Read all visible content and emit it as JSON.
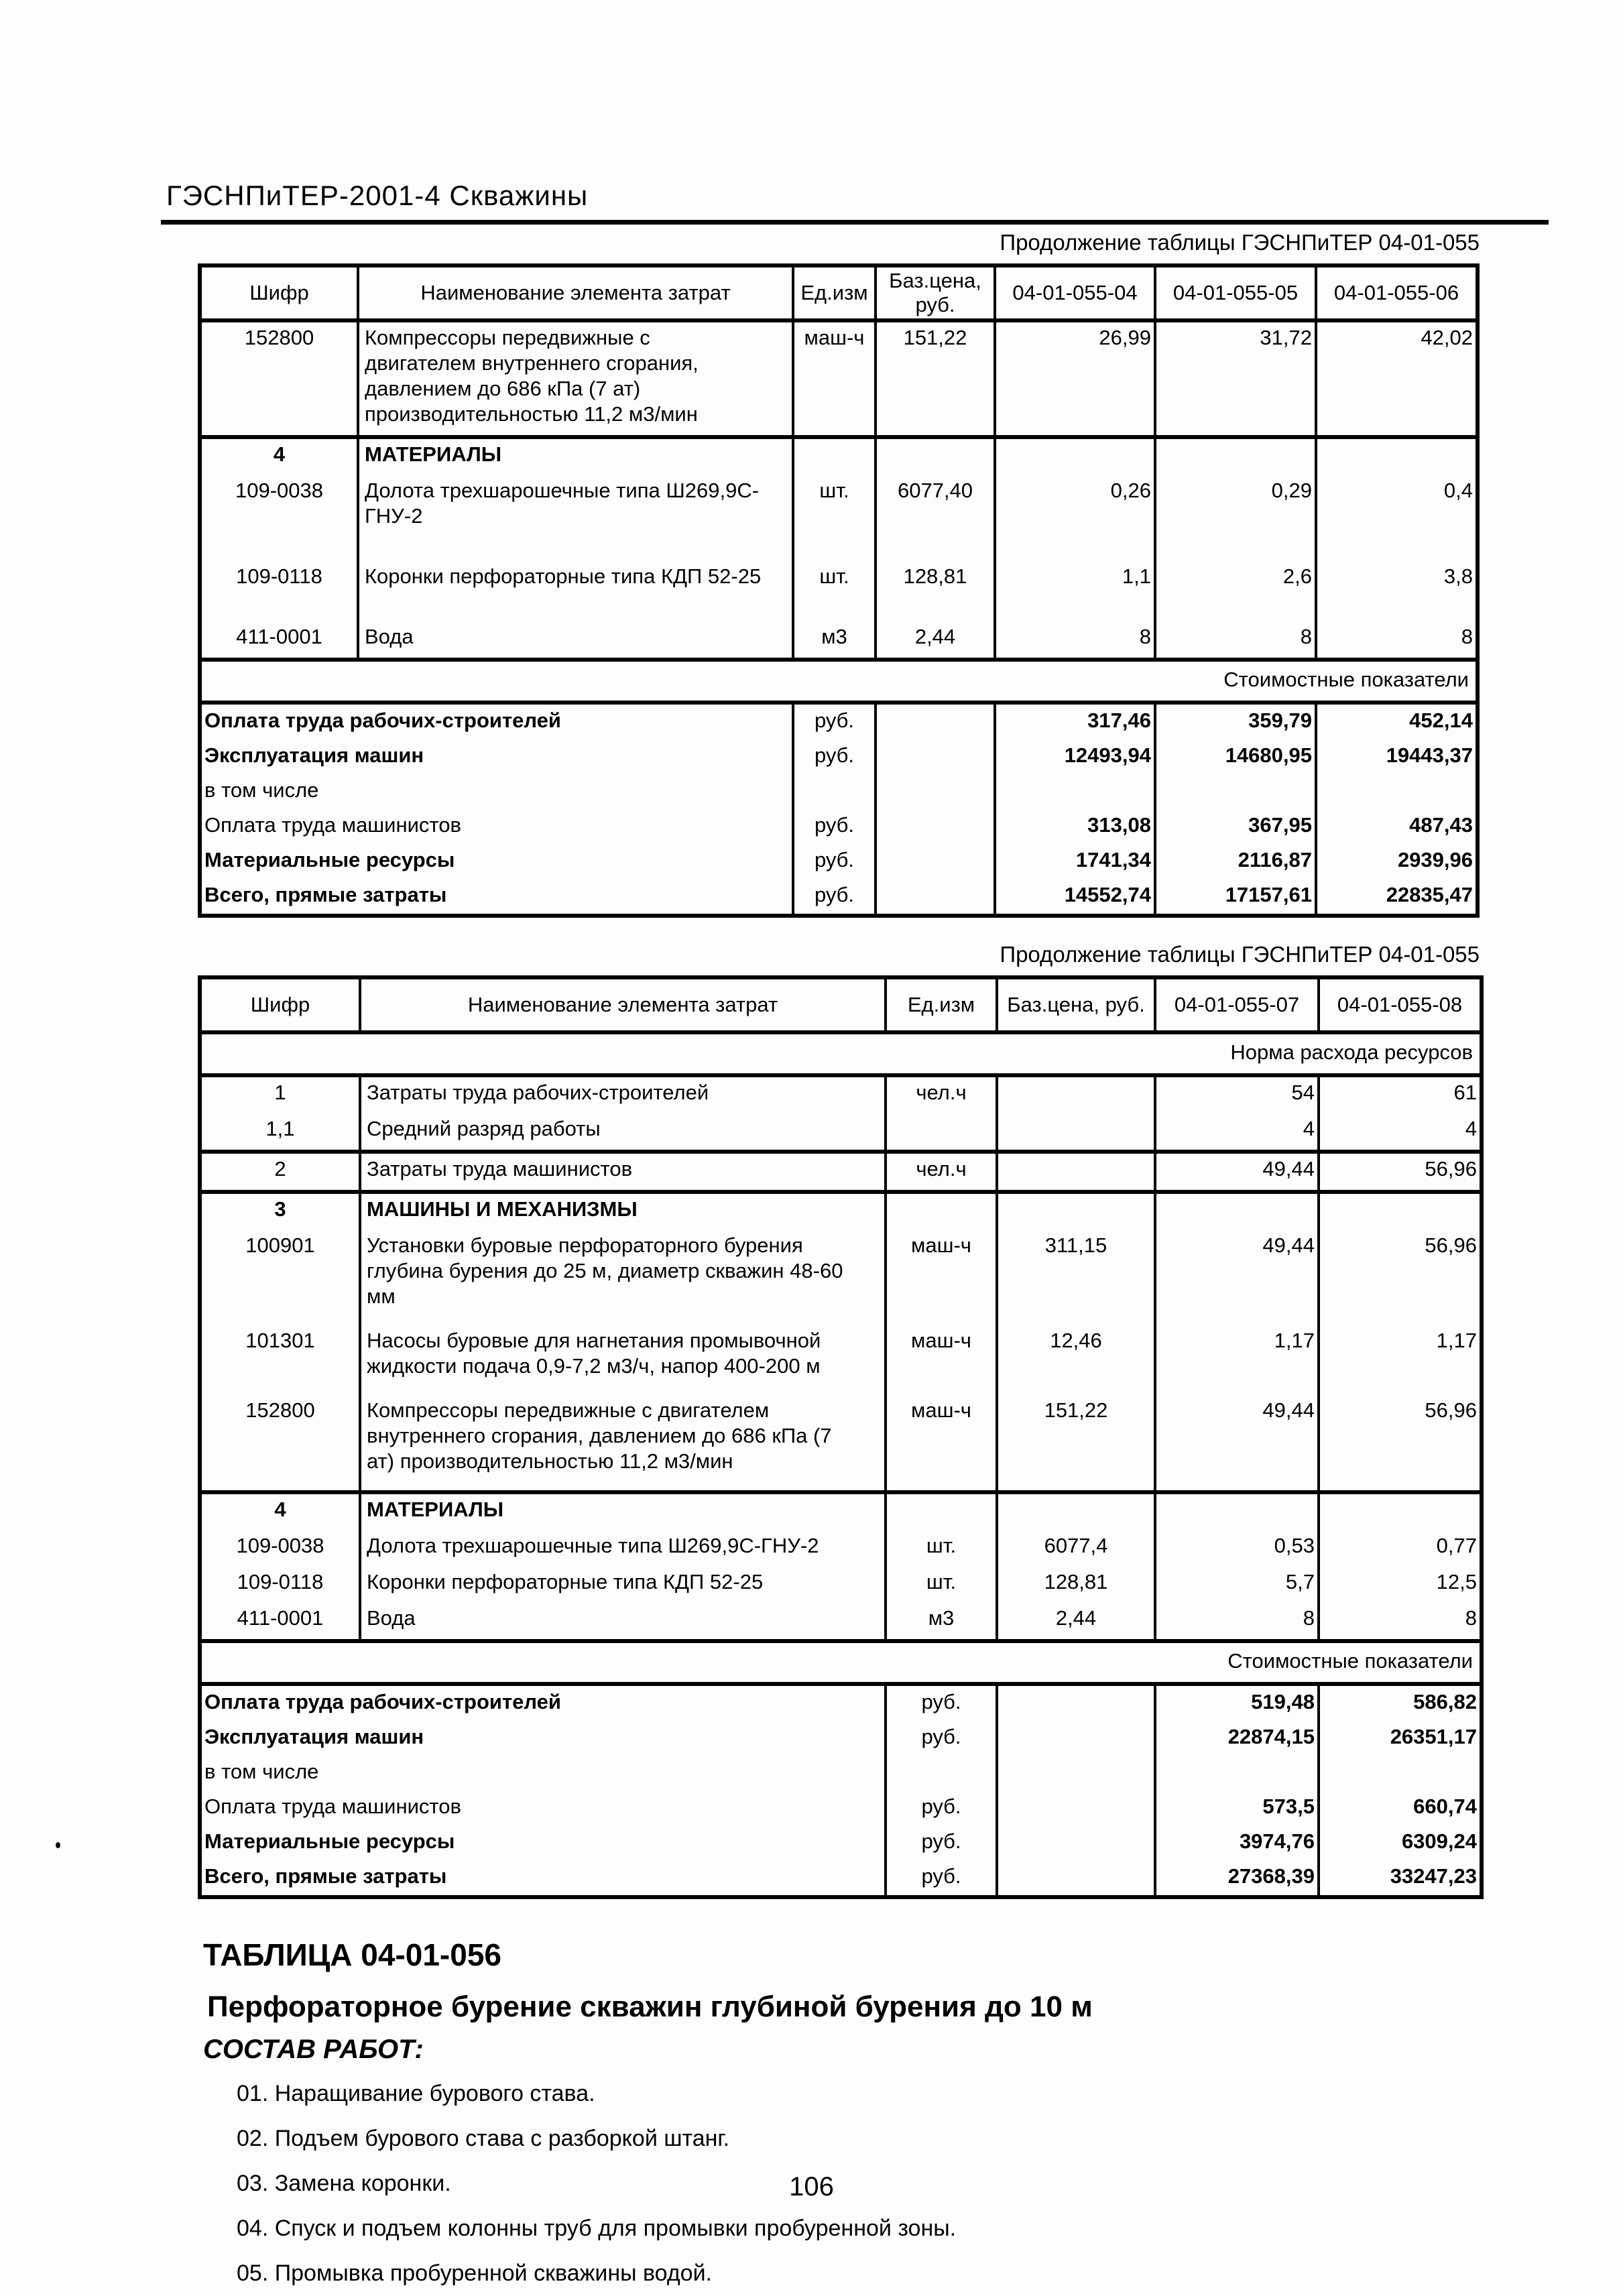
{
  "doc": {
    "header": "ГЭСНПиТЕР-2001-4 Скважины",
    "page_number": "106"
  },
  "table1": {
    "caption": "Продолжение таблицы ГЭСНПиТЕР 04-01-055",
    "columns": [
      "Шифр",
      "Наименование элемента затрат",
      "Ед.изм",
      "Баз.цена, руб.",
      "04-01-055-04",
      "04-01-055-05",
      "04-01-055-06"
    ],
    "body": [
      {
        "type": "item",
        "sec": true,
        "code": "152800",
        "name": "Компрессоры передвижные с\nдвигателем внутреннего сгорания,\nдавлением до 686 кПа (7 ат)\nпроизводительностью 11,2 м3/мин",
        "unit": "маш-ч",
        "base": "151,22",
        "values": [
          "26,99",
          "31,72",
          "42,02"
        ]
      },
      {
        "type": "item",
        "sec": true,
        "bold": true,
        "code": "4",
        "name": "МАТЕРИАЛЫ",
        "unit": "",
        "base": "",
        "values": [
          "",
          "",
          ""
        ]
      },
      {
        "type": "item",
        "g": 2,
        "code": "109-0038",
        "name": "Долота трехшарошечные типа Ш269,9С-\nГНУ-2",
        "unit": "шт.",
        "base": "6077,40",
        "values": [
          "0,26",
          "0,29",
          "0,4"
        ]
      },
      {
        "type": "item",
        "g": 2,
        "code": "109-0118",
        "name": "Коронки перфораторные типа КДП 52-25",
        "unit": "шт.",
        "base": "128,81",
        "values": [
          "1,1",
          "2,6",
          "3,8"
        ]
      },
      {
        "type": "item",
        "code": "411-0001",
        "name": "Вода",
        "unit": "м3",
        "base": "2,44",
        "values": [
          "8",
          "8",
          "8"
        ]
      },
      {
        "type": "spanner",
        "sec": true,
        "label": "Стоимостные показатели"
      },
      {
        "type": "cost",
        "sec": true,
        "bold": true,
        "label": "Оплата труда рабочих-строителей",
        "unit": "руб.",
        "values": [
          "317,46",
          "359,79",
          "452,14"
        ]
      },
      {
        "type": "cost",
        "bold": true,
        "label": "Эксплуатация машин",
        "unit": "руб.",
        "values": [
          "12493,94",
          "14680,95",
          "19443,37"
        ]
      },
      {
        "type": "cost",
        "label": "в том числе",
        "unit": "",
        "values": [
          "",
          "",
          ""
        ]
      },
      {
        "type": "cost",
        "label": "Оплата труда машинистов",
        "unit": "руб.",
        "values": [
          "313,08",
          "367,95",
          "487,43"
        ]
      },
      {
        "type": "cost",
        "bold": true,
        "label": "Материальные ресурсы",
        "unit": "руб.",
        "values": [
          "1741,34",
          "2116,87",
          "2939,96"
        ]
      },
      {
        "type": "cost",
        "bold": true,
        "label": "Всего, прямые затраты",
        "unit": "руб.",
        "values": [
          "14552,74",
          "17157,61",
          "22835,47"
        ]
      }
    ]
  },
  "table2": {
    "caption": "Продолжение таблицы ГЭСНПиТЕР 04-01-055",
    "columns": [
      "Шифр",
      "Наименование элемента затрат",
      "Ед.изм",
      "Баз.цена, руб.",
      "04-01-055-07",
      "04-01-055-08"
    ],
    "spanner_norm": "Норма расхода ресурсов",
    "body": [
      {
        "type": "spanner",
        "label": "Норма расхода ресурсов"
      },
      {
        "type": "item",
        "sec": true,
        "code": "1",
        "name": "Затраты труда рабочих-строителей",
        "unit": "чел.ч",
        "base": "",
        "values": [
          "54",
          "61"
        ]
      },
      {
        "type": "item",
        "code": "1,1",
        "name": "Средний разряд работы",
        "unit": "",
        "base": "",
        "values": [
          "4",
          "4"
        ]
      },
      {
        "type": "item",
        "sec": true,
        "code": "2",
        "name": "Затраты труда машинистов",
        "unit": "чел.ч",
        "base": "",
        "values": [
          "49,44",
          "56,96"
        ]
      },
      {
        "type": "item",
        "sec": true,
        "bold": true,
        "code": "3",
        "name": "МАШИНЫ И МЕХАНИЗМЫ",
        "unit": "",
        "base": "",
        "values": [
          "",
          ""
        ]
      },
      {
        "type": "item",
        "g": 1,
        "code": "100901",
        "name": "Установки буровые перфораторного бурения\nглубина бурения до 25 м, диаметр скважин 48-60\nмм",
        "unit": "маш-ч",
        "base": "311,15",
        "values": [
          "49,44",
          "56,96"
        ]
      },
      {
        "type": "item",
        "g": 1,
        "code": "101301",
        "name": "Насосы буровые для нагнетания промывочной\nжидкости подача 0,9-7,2 м3/ч, напор 400-200 м",
        "unit": "маш-ч",
        "base": "12,46",
        "values": [
          "1,17",
          "1,17"
        ]
      },
      {
        "type": "item",
        "g": 1,
        "code": "152800",
        "name": "Компрессоры передвижные с двигателем\nвнутреннего сгорания, давлением до 686 кПа (7\nат) производительностью 11,2 м3/мин",
        "unit": "маш-ч",
        "base": "151,22",
        "values": [
          "49,44",
          "56,96"
        ]
      },
      {
        "type": "item",
        "sec": true,
        "bold": true,
        "code": "4",
        "name": "МАТЕРИАЛЫ",
        "unit": "",
        "base": "",
        "values": [
          "",
          ""
        ]
      },
      {
        "type": "item",
        "code": "109-0038",
        "name": "Долота трехшарошечные типа Ш269,9С-ГНУ-2",
        "unit": "шт.",
        "base": "6077,4",
        "values": [
          "0,53",
          "0,77"
        ]
      },
      {
        "type": "item",
        "code": "109-0118",
        "name": "Коронки перфораторные типа КДП 52-25",
        "unit": "шт.",
        "base": "128,81",
        "values": [
          "5,7",
          "12,5"
        ]
      },
      {
        "type": "item",
        "code": "411-0001",
        "name": "Вода",
        "unit": "м3",
        "base": "2,44",
        "values": [
          "8",
          "8"
        ]
      },
      {
        "type": "spanner",
        "sec": true,
        "label": "Стоимостные показатели"
      },
      {
        "type": "cost",
        "sec": true,
        "bold": true,
        "label": "Оплата труда рабочих-строителей",
        "unit": "руб.",
        "values": [
          "519,48",
          "586,82"
        ]
      },
      {
        "type": "cost",
        "bold": true,
        "label": "Эксплуатация машин",
        "unit": "руб.",
        "values": [
          "22874,15",
          "26351,17"
        ]
      },
      {
        "type": "cost",
        "label": "в том числе",
        "unit": "",
        "values": [
          "",
          ""
        ]
      },
      {
        "type": "cost",
        "label": "Оплата труда машинистов",
        "unit": "руб.",
        "values": [
          "573,5",
          "660,74"
        ]
      },
      {
        "type": "cost",
        "bold": true,
        "label": "Материальные ресурсы",
        "unit": "руб.",
        "values": [
          "3974,76",
          "6309,24"
        ]
      },
      {
        "type": "cost",
        "bold": true,
        "label": "Всего, прямые затраты",
        "unit": "руб.",
        "values": [
          "27368,39",
          "33247,23"
        ]
      }
    ]
  },
  "section056": {
    "heading": "ТАБЛИЦА 04-01-056",
    "title": "Перфораторное бурение скважин глубиной бурения до 10 м",
    "works_label": "СОСТАВ РАБОТ:",
    "works": [
      "01. Наращивание бурового става.",
      "02. Подъем бурового става с разборкой штанг.",
      "03. Замена коронки.",
      "04. Спуск и подъем колонны труб для промывки пробуренной зоны.",
      "05. Промывка пробуренной скважины водой."
    ]
  }
}
